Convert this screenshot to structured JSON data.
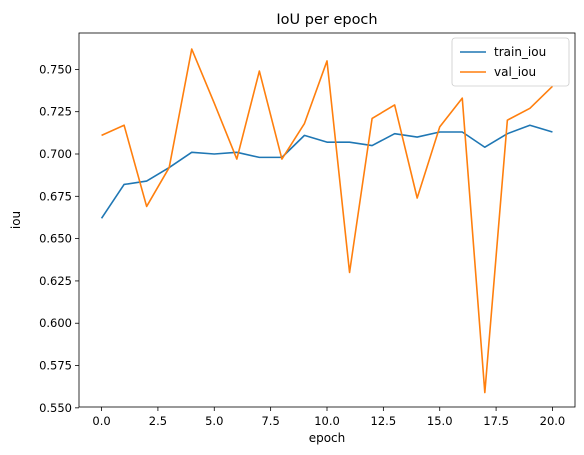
{
  "chart_data": {
    "type": "line",
    "title": "IoU per epoch",
    "xlabel": "epoch",
    "ylabel": "iou",
    "xlim": [
      -1.0,
      21.0
    ],
    "ylim": [
      0.5505,
      0.7715
    ],
    "x_ticks": [
      0.0,
      2.5,
      5.0,
      7.5,
      10.0,
      12.5,
      15.0,
      17.5,
      20.0
    ],
    "x_tick_labels": [
      "0.0",
      "2.5",
      "5.0",
      "7.5",
      "10.0",
      "12.5",
      "15.0",
      "17.5",
      "20.0"
    ],
    "y_ticks": [
      0.55,
      0.575,
      0.6,
      0.625,
      0.65,
      0.675,
      0.7,
      0.725,
      0.75
    ],
    "y_tick_labels": [
      "0.550",
      "0.575",
      "0.600",
      "0.625",
      "0.650",
      "0.675",
      "0.700",
      "0.725",
      "0.750"
    ],
    "grid": false,
    "legend_position": "top-right",
    "x": [
      0,
      1,
      2,
      3,
      4,
      5,
      6,
      7,
      8,
      9,
      10,
      11,
      12,
      13,
      14,
      15,
      16,
      17,
      18,
      19,
      20
    ],
    "series": [
      {
        "name": "train_iou",
        "color": "#1f77b4",
        "values": [
          0.662,
          0.682,
          0.684,
          0.692,
          0.701,
          0.7,
          0.701,
          0.698,
          0.698,
          0.711,
          0.707,
          0.707,
          0.705,
          0.712,
          0.71,
          0.713,
          0.713,
          0.704,
          0.712,
          0.717,
          0.713
        ]
      },
      {
        "name": "val_iou",
        "color": "#ff7f0e",
        "values": [
          0.711,
          0.717,
          0.669,
          0.692,
          0.762,
          0.73,
          0.697,
          0.749,
          0.697,
          0.718,
          0.755,
          0.63,
          0.721,
          0.729,
          0.674,
          0.716,
          0.733,
          0.559,
          0.72,
          0.727,
          0.74
        ]
      }
    ]
  }
}
